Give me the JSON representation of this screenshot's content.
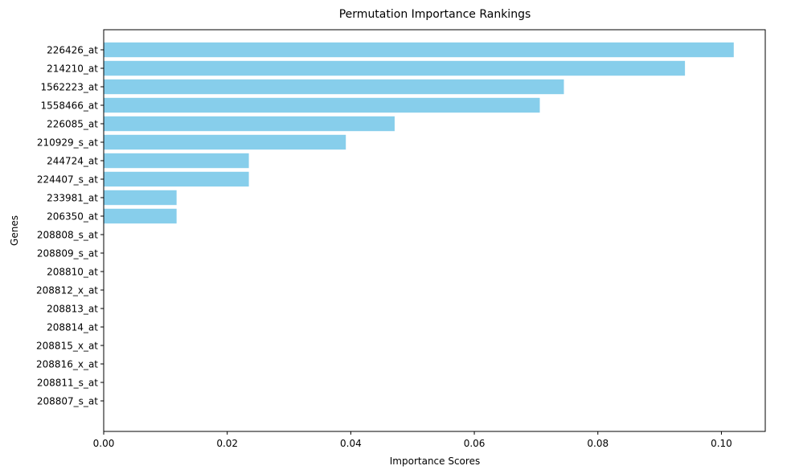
{
  "chart_data": {
    "type": "bar",
    "orientation": "horizontal",
    "title": "Permutation Importance Rankings",
    "xlabel": "Importance Scores",
    "ylabel": "Genes",
    "xlim": [
      0,
      0.1071
    ],
    "xticks": [
      0.0,
      0.02,
      0.04,
      0.06,
      0.08,
      0.1
    ],
    "xtick_labels": [
      "0.00",
      "0.02",
      "0.04",
      "0.06",
      "0.08",
      "0.10"
    ],
    "grid": false,
    "legend": "none",
    "bar_color": "#87CEEB",
    "categories": [
      "226426_at",
      "214210_at",
      "1562223_at",
      "1558466_at",
      "226085_at",
      "210929_s_at",
      "244724_at",
      "224407_s_at",
      "233981_at",
      "206350_at",
      "208808_s_at",
      "208809_s_at",
      "208810_at",
      "208812_x_at",
      "208813_at",
      "208814_at",
      "208815_x_at",
      "208816_x_at",
      "208811_s_at",
      "208807_s_at"
    ],
    "values": [
      0.102,
      0.0941,
      0.0745,
      0.0706,
      0.0471,
      0.0392,
      0.0235,
      0.0235,
      0.0118,
      0.0118,
      0,
      0,
      0,
      0,
      0,
      0,
      0,
      0,
      0,
      0
    ]
  }
}
